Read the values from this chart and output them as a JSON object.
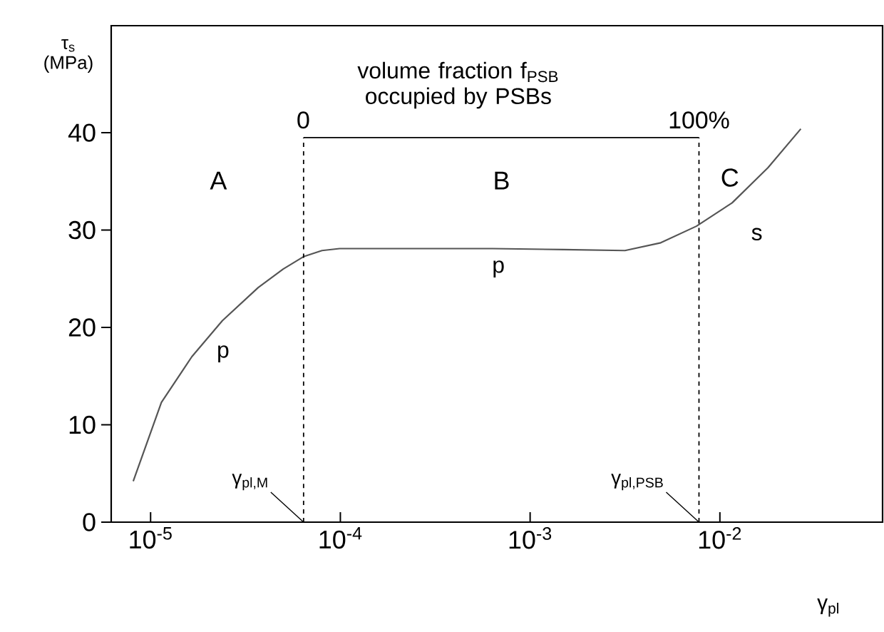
{
  "chart_data": {
    "type": "line",
    "xlabel": "γ$_{pl}$",
    "ylabel": "τ$_{s}$ (MPa)",
    "log": "x",
    "xlim": [
      6.2e-06,
      0.072
    ],
    "ylim": [
      0,
      51
    ],
    "xticks": [
      {
        "value": 1e-05,
        "label": "10$^{-5}$"
      },
      {
        "value": 0.0001,
        "label": "10$^{-4}$"
      },
      {
        "value": 0.001,
        "label": "10$^{-3}$"
      },
      {
        "value": 0.01,
        "label": "10$^{-2}$"
      }
    ],
    "yticks": [
      0,
      10,
      20,
      30,
      40
    ],
    "marker": "none",
    "series": [
      {
        "color": "#555555",
        "line_style": "solid",
        "x": [
          8.1e-06,
          1.14e-05,
          1.65e-05,
          2.39e-05,
          3.69e-05,
          5e-05,
          6.44e-05,
          8e-05,
          9.9e-05,
          0.0002,
          0.000634,
          0.0015,
          0.00316,
          0.00488,
          0.00752,
          0.0116,
          0.0179,
          0.0267
        ],
        "values": [
          4.2,
          12.3,
          17.0,
          20.7,
          24.1,
          26.0,
          27.3,
          27.9,
          28.1,
          28.1,
          28.1,
          28.0,
          27.9,
          28.7,
          30.4,
          32.8,
          36.4,
          40.4
        ]
      },
      {
        "color": "#000000",
        "line_style": "dashed",
        "x": [
          6.4e-05,
          6.4e-05
        ],
        "values": [
          0,
          39.5
        ]
      },
      {
        "color": "#000000",
        "line_style": "solid",
        "x": [
          6.4e-05,
          0.00776
        ],
        "values": [
          39.5,
          39.5
        ]
      },
      {
        "color": "#000000",
        "line_style": "dashed",
        "x": [
          0.00776,
          0.00776
        ],
        "values": [
          0,
          39.5
        ]
      }
    ],
    "annotations": [
      "volume fraction  f$_{PSB}$ occupied by PSBs",
      "0",
      "100%",
      "A",
      "B",
      "C",
      "p",
      "p",
      "s",
      {
        "text": "γ$_{pl,M}$",
        "x": 6.4e-05,
        "y": 0
      },
      {
        "text": "γ$_{pl,PSB}$",
        "x": 0.00776,
        "y": 0
      }
    ]
  }
}
